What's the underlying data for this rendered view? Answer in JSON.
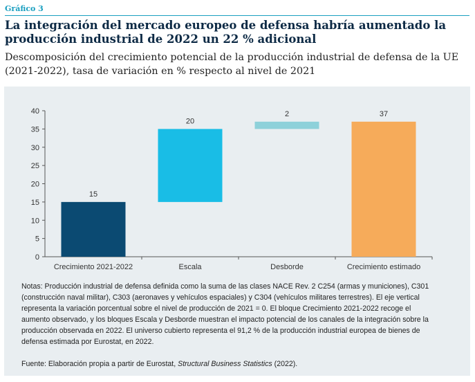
{
  "header": {
    "label": "Gráfico 3",
    "title": "La integración del mercado europeo de defensa habría aumentado la producción industrial de 2022 un 22 % adicional",
    "subtitle": "Descomposición del crecimiento potencial de la producción industrial de defensa de la UE (2021-2022), tasa de variación en % respecto al nivel de 2021"
  },
  "chart_data": {
    "type": "bar",
    "subtype": "waterfall",
    "categories": [
      "Crecimiento 2021-2022",
      "Escala",
      "Desborde",
      "Crecimiento estimado"
    ],
    "values": [
      15,
      20,
      2,
      37
    ],
    "bases": [
      0,
      15,
      35,
      0
    ],
    "data_labels": [
      "15",
      "20",
      "2",
      "37"
    ],
    "colors": [
      "#0b4a72",
      "#19bde6",
      "#8ed1da",
      "#f6ab5a"
    ],
    "ylim": [
      0,
      40
    ],
    "yticks": [
      "0",
      "5",
      "10",
      "15",
      "20",
      "25",
      "30",
      "35",
      "40"
    ],
    "grid": false,
    "legend": "none",
    "title": "",
    "xlabel": "",
    "ylabel": ""
  },
  "notes": {
    "text": "Notas: Producción industrial de defensa definida como la suma de las clases NACE Rev. 2 C254 (armas y municiones), C301 (construcción naval militar), C303 (aeronaves y vehículos espaciales) y C304 (vehículos militares terrestres). El eje vertical representa la variación porcentual sobre el nivel de producción de 2021 = 0. El bloque Crecimiento 2021-2022 recoge el aumento observado, y los bloques Escala y Desborde muestran el impacto potencial de los canales de la integración sobre la producción observada en 2022. El universo cubierto representa el 91,2 % de la producción industrial europea de bienes de defensa estimada por Eurostat, en 2022.",
    "source_prefix": "Fuente: Elaboración propia a partir de Eurostat, ",
    "source_italic": "Structural Business Statistics",
    "source_suffix": " (2022)."
  }
}
